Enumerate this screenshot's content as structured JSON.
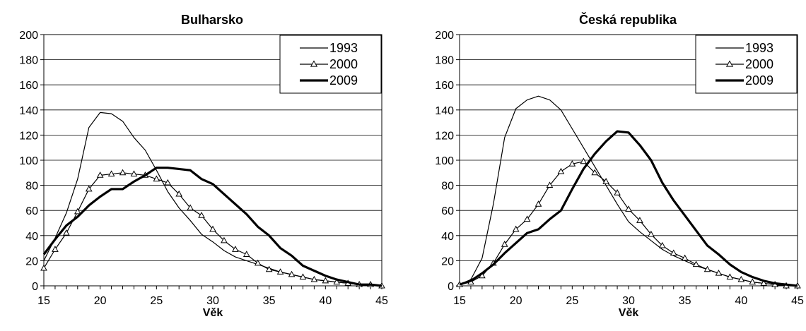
{
  "chart_data": [
    {
      "type": "line",
      "title": "Bulharsko",
      "xlabel": "Věk",
      "ylabel": "",
      "xlim": [
        15,
        45
      ],
      "ylim": [
        0,
        200
      ],
      "x_ticks": [
        15,
        20,
        25,
        30,
        35,
        40,
        45
      ],
      "y_ticks": [
        0,
        20,
        40,
        60,
        80,
        100,
        120,
        140,
        160,
        180,
        200
      ],
      "grid": "horizontal",
      "legend": "top-right",
      "x": [
        15,
        16,
        17,
        18,
        19,
        20,
        21,
        22,
        23,
        24,
        25,
        26,
        27,
        28,
        29,
        30,
        31,
        32,
        33,
        34,
        35,
        36,
        37,
        38,
        39,
        40,
        41,
        42,
        43,
        44,
        45
      ],
      "series": [
        {
          "name": "1993",
          "style": "thin",
          "marker": "none",
          "values": [
            20,
            38,
            58,
            85,
            126,
            138,
            137,
            131,
            118,
            108,
            92,
            75,
            62,
            52,
            41,
            35,
            28,
            23,
            20,
            17,
            14,
            11,
            9,
            7,
            5,
            4,
            3,
            2,
            1,
            1,
            0
          ]
        },
        {
          "name": "2000",
          "style": "medium",
          "marker": "triangle",
          "values": [
            14,
            29,
            42,
            59,
            77,
            88,
            89,
            90,
            89,
            88,
            85,
            82,
            73,
            62,
            56,
            45,
            36,
            29,
            25,
            18,
            13,
            11,
            9,
            7,
            5,
            4,
            3,
            2,
            1,
            1,
            0
          ]
        },
        {
          "name": "2009",
          "style": "thick",
          "marker": "none",
          "values": [
            25,
            37,
            48,
            55,
            64,
            71,
            77,
            77,
            83,
            88,
            94,
            94,
            93,
            92,
            85,
            81,
            73,
            65,
            57,
            47,
            40,
            30,
            24,
            16,
            12,
            8,
            5,
            3,
            1,
            1,
            0
          ]
        }
      ]
    },
    {
      "type": "line",
      "title": "Česká republika",
      "xlabel": "Věk",
      "ylabel": "",
      "xlim": [
        15,
        45
      ],
      "ylim": [
        0,
        200
      ],
      "x_ticks": [
        15,
        20,
        25,
        30,
        35,
        40,
        45
      ],
      "y_ticks": [
        0,
        20,
        40,
        60,
        80,
        100,
        120,
        140,
        160,
        180,
        200
      ],
      "grid": "horizontal",
      "legend": "top-right",
      "x": [
        15,
        16,
        17,
        18,
        19,
        20,
        21,
        22,
        23,
        24,
        25,
        26,
        27,
        28,
        29,
        30,
        31,
        32,
        33,
        34,
        35,
        36,
        37,
        38,
        39,
        40,
        41,
        42,
        43,
        44,
        45
      ],
      "series": [
        {
          "name": "1993",
          "style": "thin",
          "marker": "none",
          "values": [
            1,
            5,
            22,
            65,
            118,
            141,
            148,
            151,
            148,
            140,
            125,
            110,
            95,
            80,
            65,
            51,
            43,
            36,
            29,
            24,
            20,
            16,
            13,
            10,
            7,
            5,
            3,
            2,
            1,
            0,
            0
          ]
        },
        {
          "name": "2000",
          "style": "medium",
          "marker": "triangle",
          "values": [
            1,
            3,
            8,
            18,
            33,
            45,
            53,
            65,
            80,
            91,
            97,
            99,
            90,
            83,
            74,
            61,
            52,
            41,
            32,
            26,
            22,
            17,
            13,
            10,
            7,
            5,
            3,
            2,
            1,
            0,
            0
          ]
        },
        {
          "name": "2009",
          "style": "thick",
          "marker": "none",
          "values": [
            1,
            4,
            10,
            17,
            26,
            34,
            42,
            45,
            53,
            60,
            77,
            93,
            105,
            115,
            123,
            122,
            112,
            100,
            82,
            68,
            56,
            44,
            32,
            25,
            17,
            11,
            7,
            4,
            2,
            1,
            0
          ]
        }
      ]
    }
  ]
}
